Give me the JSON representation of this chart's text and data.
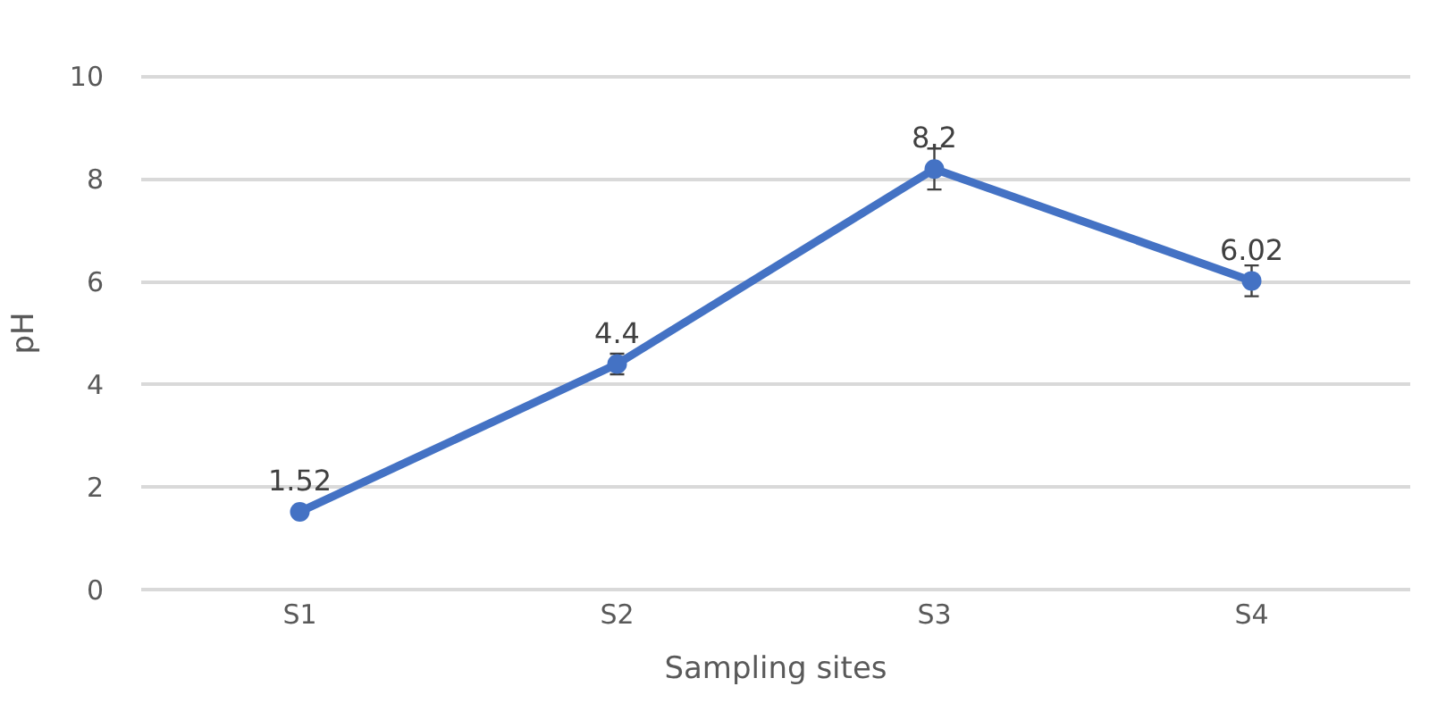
{
  "chart_data": {
    "type": "line",
    "xlabel": "Sampling sites",
    "ylabel": "pH",
    "categories": [
      "S1",
      "S2",
      "S3",
      "S4"
    ],
    "series": [
      {
        "color": "#4472c4",
        "values": [
          1.52,
          4.4,
          8.2,
          6.02
        ],
        "errors": [
          null,
          0.2,
          0.4,
          0.3
        ]
      }
    ],
    "ylim": [
      0,
      10
    ],
    "yticks": [
      0,
      2,
      4,
      6,
      8,
      10
    ],
    "grid": "y",
    "marker": "circle",
    "line_style": "solid",
    "data_labels": true,
    "legend": false
  }
}
